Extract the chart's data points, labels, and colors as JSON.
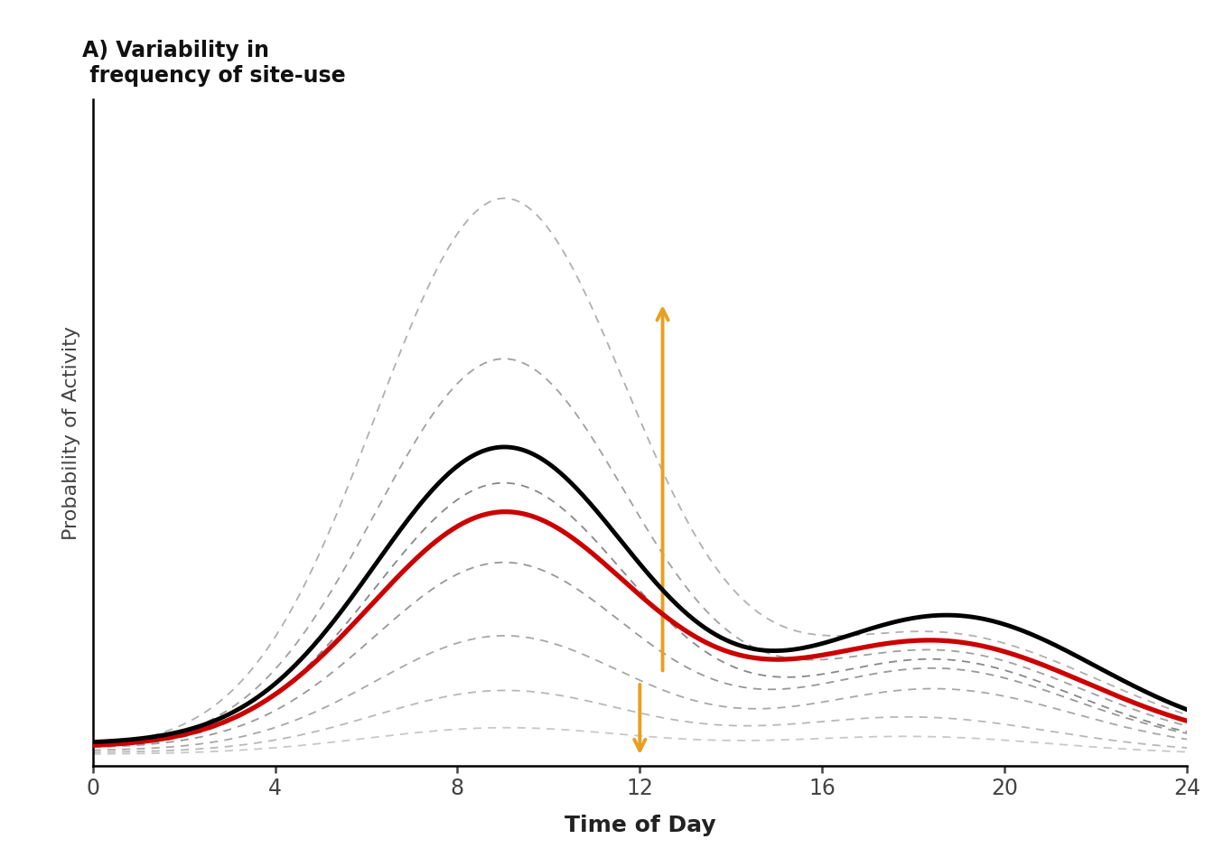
{
  "title": "A) Variability in\n frequency of site-use",
  "xlabel": "Time of Day",
  "ylabel": "Probability of Activity",
  "xlim": [
    0,
    24
  ],
  "ylim": [
    -0.005,
    0.75
  ],
  "xticks": [
    0,
    4,
    8,
    12,
    16,
    20,
    24
  ],
  "arrow_color": "#E8A020",
  "background_color": "#ffffff",
  "black_line_color": "#000000",
  "red_line_color": "#cc0000"
}
